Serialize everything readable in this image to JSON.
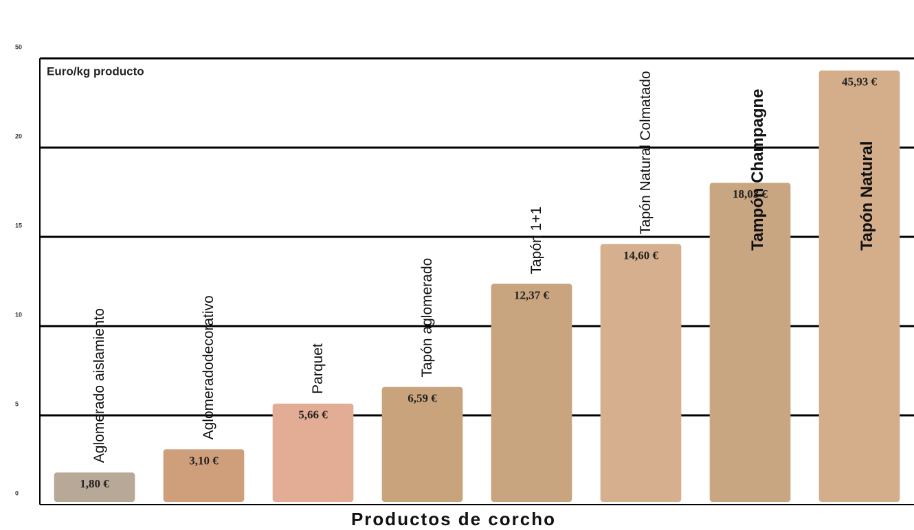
{
  "chart_data": {
    "type": "bar",
    "y_label": "Euro/kg producto",
    "x_label": "Productos de corcho",
    "categories": [
      "Aglomerado aislamiento",
      "Aglomeradodecorativo",
      "Parquet",
      "Tapón aglomerado",
      "Tapón 1+1",
      "Tapón Natural Colmatado",
      "Tampón Champagne",
      "Tapón Natural"
    ],
    "values": [
      1.8,
      3.1,
      5.66,
      6.59,
      12.37,
      14.6,
      18.03,
      45.93
    ],
    "value_labels": [
      "1,80 €",
      "3,10 €",
      "5,66 €",
      "6,59 €",
      "12,37 €",
      "14,60 €",
      "18,03 €",
      "45,93 €"
    ],
    "colors": [
      "#b8a898",
      "#cf9f7c",
      "#e3ac94",
      "#c9a37c",
      "#c8a47f",
      "#d6b08e",
      "#c9a682",
      "#d4ad8a"
    ],
    "ylim": [
      0,
      50
    ],
    "yticks": [
      0,
      5,
      10,
      15,
      20,
      50
    ],
    "grid": true
  }
}
